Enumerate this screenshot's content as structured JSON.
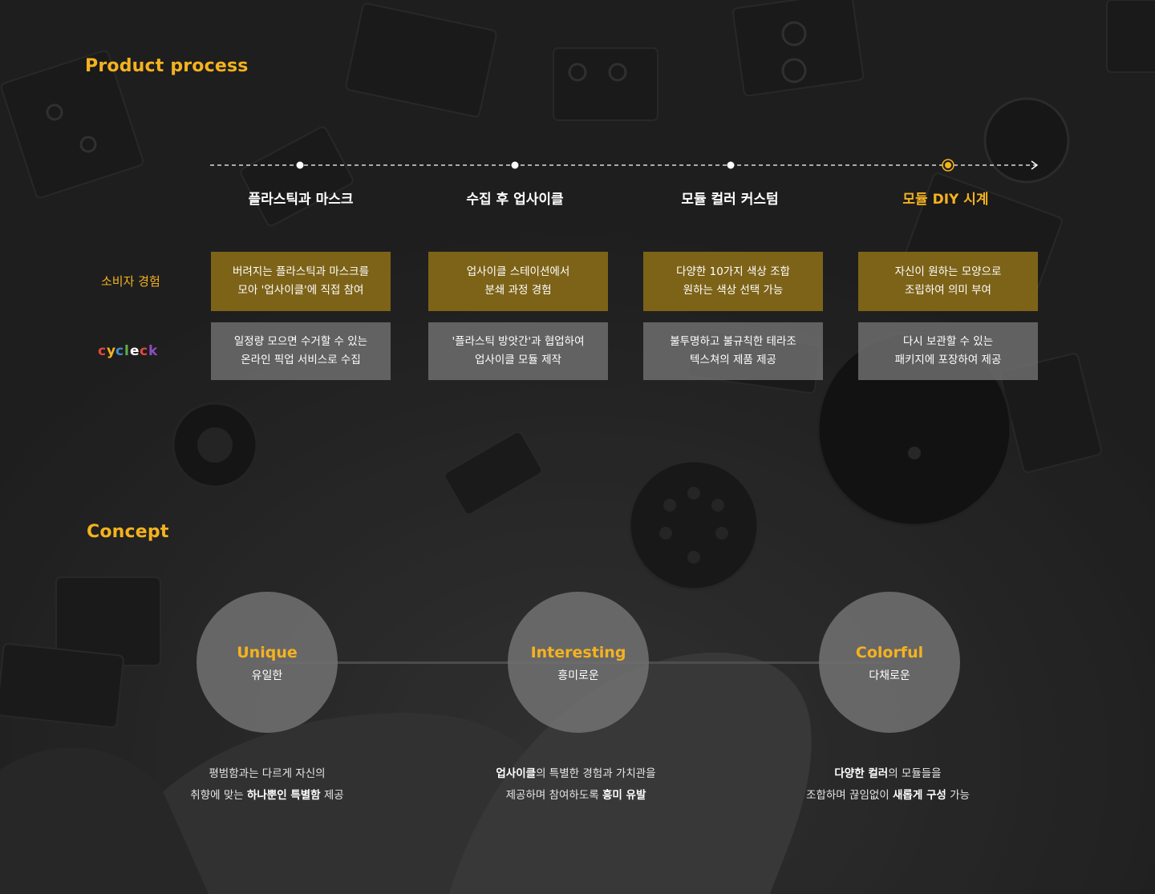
{
  "sections": {
    "process_title": "Product process",
    "concept_title": "Concept"
  },
  "colors": {
    "accent": "#f5b21f",
    "gold_card": "#866918",
    "gray_card": "#707070",
    "background": "#262626"
  },
  "process": {
    "row_labels": {
      "consumer": "소비자 경험",
      "brand_logo": "cycleck"
    },
    "steps": [
      {
        "title": "플라스틱과 마스크",
        "consumer": [
          "버려지는 플라스틱과 마스크를",
          "모아 '업사이클'에 직접 참여"
        ],
        "brand": [
          "일정량 모으면 수거할 수 있는",
          "온라인 픽업 서비스로 수집"
        ]
      },
      {
        "title": "수집 후 업사이클",
        "consumer": [
          "업사이클 스테이션에서",
          "분쇄 과정 경험"
        ],
        "brand": [
          "'플라스틱 방앗간'과 협업하여",
          "업사이클 모듈 제작"
        ]
      },
      {
        "title": "모듈 컬러 커스텀",
        "consumer": [
          "다양한 10가지 색상 조합",
          "원하는 색상 선택 가능"
        ],
        "brand": [
          "불투명하고 불규칙한 테라조",
          "텍스쳐의 제품 제공"
        ]
      },
      {
        "title": "모듈 DIY 시계",
        "consumer": [
          "자신이 원하는 모양으로",
          "조립하여 의미 부여"
        ],
        "brand": [
          "다시 보관할 수 있는",
          "패키지에 포장하여 제공"
        ]
      }
    ]
  },
  "concept": {
    "items": [
      {
        "en": "Unique",
        "ko": "유일한",
        "desc": [
          [
            "평범함과는 다르게 자신의"
          ],
          [
            "취향에 맞는 ",
            "하나뿐인 특별함",
            " 제공"
          ]
        ]
      },
      {
        "en": "Interesting",
        "ko": "흥미로운",
        "desc": [
          [
            "업사이클",
            "의 특별한 경험과 가치관을"
          ],
          [
            "제공하며 참여하도록 ",
            "흥미 유발"
          ]
        ]
      },
      {
        "en": "Colorful",
        "ko": "다채로운",
        "desc": [
          [
            "다양한 컬러",
            "의 모듈들을"
          ],
          [
            "조합하며 끊임없이 ",
            "새롭게 구성",
            " 가능"
          ]
        ]
      }
    ]
  }
}
